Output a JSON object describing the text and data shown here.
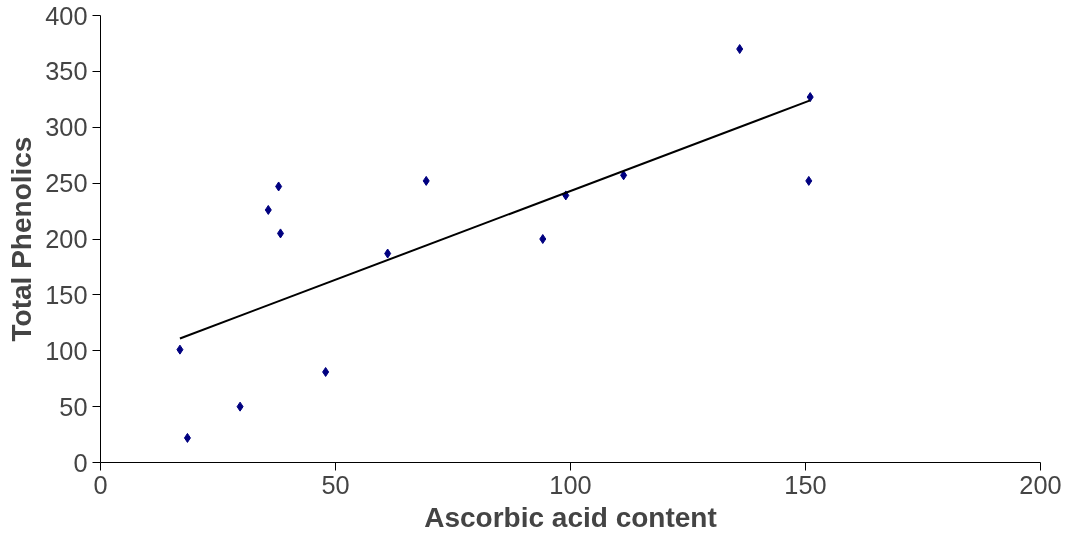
{
  "chart_data": {
    "type": "scatter",
    "xlabel": "Ascorbic acid content",
    "ylabel": "Total Phenolics",
    "xlim": [
      0,
      200
    ],
    "ylim": [
      0,
      400
    ],
    "xticks": [
      0,
      50,
      100,
      150,
      200
    ],
    "yticks": [
      0,
      50,
      100,
      150,
      200,
      250,
      300,
      350,
      400
    ],
    "grid": false,
    "series": [
      {
        "marker": "diamond",
        "color": "#000080",
        "x": [
          16.9,
          18.5,
          29.7,
          35.7,
          37.9,
          38.3,
          47.9,
          61.1,
          69.3,
          94.1,
          99,
          111.3,
          136,
          150.7,
          151
        ],
        "values": [
          101,
          22,
          50,
          226,
          247,
          205,
          81,
          187,
          252,
          200,
          239,
          257,
          370,
          252,
          327
        ]
      },
      {
        "type": "line",
        "color": "#000000",
        "x": [
          16.9,
          151
        ],
        "values": [
          111,
          324
        ]
      }
    ]
  }
}
